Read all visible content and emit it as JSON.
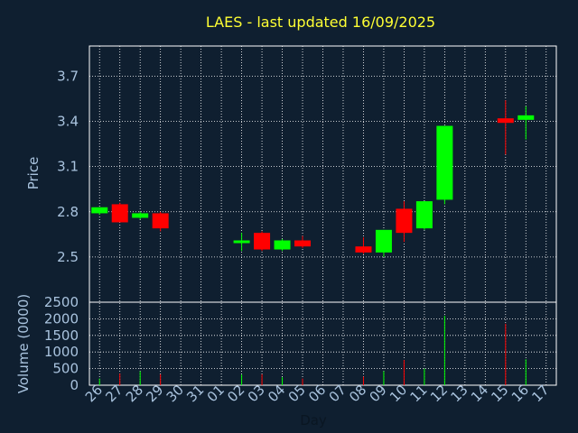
{
  "chart_data": {
    "type": "candlestick",
    "title": "LAES - last updated 16/09/2025",
    "xlabel": "Day",
    "ylabel_price": "Price",
    "ylabel_volume": "Volume (0000)",
    "x_ticks": [
      "26",
      "27",
      "28",
      "29",
      "30",
      "31",
      "01",
      "02",
      "03",
      "04",
      "05",
      "06",
      "07",
      "08",
      "09",
      "10",
      "11",
      "12",
      "13",
      "14",
      "15",
      "16",
      "17"
    ],
    "price_ticks": [
      2.5,
      2.8,
      3.1,
      3.4,
      3.7
    ],
    "price_tick_labels": [
      "2.5",
      "2.8",
      "3.1",
      "3.4",
      "3.7"
    ],
    "price_ylim": [
      2.2,
      3.9
    ],
    "volume_ticks": [
      0,
      500,
      1000,
      1500,
      2000,
      2500
    ],
    "volume_tick_labels": [
      "0",
      "500",
      "1000",
      "1500",
      "2000",
      "2500"
    ],
    "volume_ylim": [
      0,
      2500
    ],
    "grid": true,
    "colors": {
      "up": "#00ff00",
      "down": "#ff0000",
      "background": "#0f1f30",
      "grid": "#ffffff",
      "title": "#ffff33",
      "axis_text": "#a9c3de"
    },
    "candles": [
      {
        "day": "26",
        "open": 2.79,
        "high": 2.83,
        "low": 2.78,
        "close": 2.83,
        "volume": 200
      },
      {
        "day": "27",
        "open": 2.85,
        "high": 2.86,
        "low": 2.73,
        "close": 2.73,
        "volume": 350
      },
      {
        "day": "28",
        "open": 2.76,
        "high": 2.8,
        "low": 2.75,
        "close": 2.79,
        "volume": 420
      },
      {
        "day": "29",
        "open": 2.79,
        "high": 2.8,
        "low": 2.67,
        "close": 2.69,
        "volume": 330
      },
      {
        "day": "02",
        "open": 2.6,
        "high": 2.66,
        "low": 2.54,
        "close": 2.61,
        "volume": 320
      },
      {
        "day": "03",
        "open": 2.66,
        "high": 2.67,
        "low": 2.54,
        "close": 2.55,
        "volume": 330
      },
      {
        "day": "04",
        "open": 2.55,
        "high": 2.62,
        "low": 2.54,
        "close": 2.61,
        "volume": 240
      },
      {
        "day": "05",
        "open": 2.61,
        "high": 2.64,
        "low": 2.56,
        "close": 2.57,
        "volume": 200
      },
      {
        "day": "08",
        "open": 2.57,
        "high": 2.63,
        "low": 2.52,
        "close": 2.53,
        "volume": 260
      },
      {
        "day": "09",
        "open": 2.53,
        "high": 2.68,
        "low": 2.5,
        "close": 2.68,
        "volume": 420
      },
      {
        "day": "10",
        "open": 2.82,
        "high": 2.87,
        "low": 2.6,
        "close": 2.66,
        "volume": 760
      },
      {
        "day": "11",
        "open": 2.69,
        "high": 2.87,
        "low": 2.68,
        "close": 2.87,
        "volume": 500
      },
      {
        "day": "12",
        "open": 2.88,
        "high": 3.37,
        "low": 2.85,
        "close": 3.37,
        "volume": 2090
      },
      {
        "day": "15",
        "open": 3.42,
        "high": 3.54,
        "low": 3.18,
        "close": 3.39,
        "volume": 1850
      },
      {
        "day": "16",
        "open": 3.41,
        "high": 3.5,
        "low": 3.28,
        "close": 3.44,
        "volume": 780
      }
    ]
  }
}
